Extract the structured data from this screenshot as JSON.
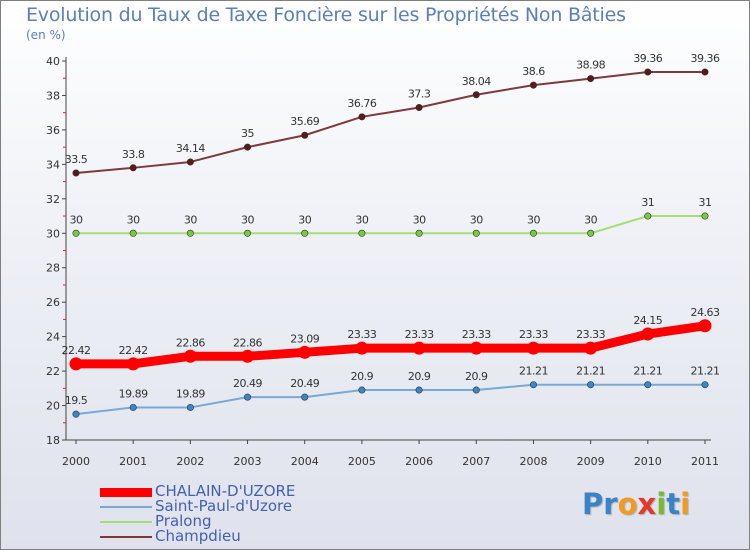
{
  "title": "Evolution du Taux de Taxe Foncière sur les Propriétés Non Bâties",
  "unit_label": "(en %)",
  "logo": {
    "text": "Proxiti",
    "letter_colors": [
      "#3a83c6",
      "#3a83c6",
      "#f29a1d",
      "#e23a2a",
      "#7ab830",
      "#3a83c6",
      "#f29a1d"
    ]
  },
  "chart_data": {
    "type": "line",
    "title": "Evolution du Taux de Taxe Foncière sur les Propriétés Non Bâties",
    "ylabel": "(en %)",
    "xlabel": "",
    "x": [
      "2000",
      "2001",
      "2002",
      "2003",
      "2004",
      "2005",
      "2006",
      "2007",
      "2008",
      "2009",
      "2010",
      "2011"
    ],
    "ylim": [
      18,
      40
    ],
    "yticks": [
      "18",
      "20",
      "22",
      "24",
      "26",
      "28",
      "30",
      "32",
      "34",
      "36",
      "38",
      "40"
    ],
    "legend_position": "bottom-left",
    "grid": false,
    "series": [
      {
        "name": "CHALAIN-D'UZORE",
        "color": "#ff0000",
        "values": [
          22.42,
          22.42,
          22.86,
          22.86,
          23.09,
          23.33,
          23.33,
          23.33,
          23.33,
          23.33,
          24.15,
          24.63
        ],
        "labels": [
          "22.42",
          "22.42",
          "22.86",
          "22.86",
          "23.09",
          "23.33",
          "23.33",
          "23.33",
          "23.33",
          "23.33",
          "24.15",
          "24.63"
        ]
      },
      {
        "name": "Saint-Paul-d'Uzore",
        "color": "#77a9d4",
        "values": [
          19.5,
          19.89,
          19.89,
          20.49,
          20.49,
          20.9,
          20.9,
          20.9,
          21.21,
          21.21,
          21.21,
          21.21
        ],
        "labels": [
          "19.5",
          "19.89",
          "19.89",
          "20.49",
          "20.49",
          "20.9",
          "20.9",
          "20.9",
          "21.21",
          "21.21",
          "21.21",
          "21.21"
        ]
      },
      {
        "name": "Pralong",
        "color": "#a6dc76",
        "values": [
          30,
          30,
          30,
          30,
          30,
          30,
          30,
          30,
          30,
          30,
          31,
          31
        ],
        "labels": [
          "30",
          "30",
          "30",
          "30",
          "30",
          "30",
          "30",
          "30",
          "30",
          "30",
          "31",
          "31"
        ]
      },
      {
        "name": "Champdieu",
        "color": "#7d3a3a",
        "values": [
          33.5,
          33.8,
          34.14,
          35,
          35.69,
          36.76,
          37.3,
          38.04,
          38.6,
          38.98,
          39.36,
          39.36
        ],
        "labels": [
          "33.5",
          "33.8",
          "34.14",
          "35",
          "35.69",
          "36.76",
          "37.3",
          "38.04",
          "38.6",
          "38.98",
          "39.36",
          "39.36"
        ]
      }
    ]
  }
}
